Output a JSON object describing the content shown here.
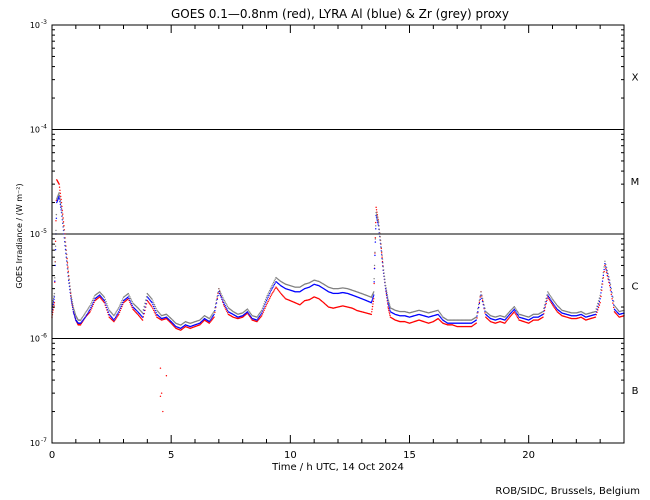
{
  "chart_data": {
    "type": "scatter",
    "title": "GOES 0.1—0.8nm (red), LYRA Al (blue) & Zr (grey) proxy",
    "xlabel": "Time / h UTC, 14 Oct 2024",
    "ylabel": "GOES Irradiance / (W m⁻²)",
    "footer": "ROB/SIDC, Brussels, Belgium",
    "xlim": [
      0,
      24
    ],
    "ylim": [
      1e-07,
      0.001
    ],
    "yscale": "log",
    "x_ticks": [
      0,
      5,
      10,
      15,
      20
    ],
    "y_ticks": [
      {
        "value": 1e-07,
        "mant": "10",
        "exp": "-7"
      },
      {
        "value": 1e-06,
        "mant": "10",
        "exp": "-6"
      },
      {
        "value": 1e-05,
        "mant": "10",
        "exp": "-5"
      },
      {
        "value": 0.0001,
        "mant": "10",
        "exp": "-4"
      },
      {
        "value": 0.001,
        "mant": "10",
        "exp": "-3"
      }
    ],
    "flare_class_lines": [
      1e-06,
      1e-05,
      0.0001
    ],
    "flare_classes": [
      {
        "label": "B",
        "value": 3.2e-07
      },
      {
        "label": "C",
        "value": 3.2e-06
      },
      {
        "label": "M",
        "value": 3.2e-05
      },
      {
        "label": "X",
        "value": 0.00032
      }
    ],
    "colors": {
      "goes": "#ff0000",
      "lyra_al": "#0000ff",
      "lyra_zr": "#808080"
    },
    "series": [
      {
        "name": "GOES",
        "color": "#ff0000",
        "x": [
          0.0,
          0.1,
          0.2,
          0.3,
          0.4,
          0.5,
          0.6,
          0.7,
          0.8,
          0.9,
          1.0,
          1.1,
          1.2,
          1.4,
          1.6,
          1.8,
          2.0,
          2.2,
          2.4,
          2.6,
          2.8,
          3.0,
          3.2,
          3.4,
          3.6,
          3.8,
          4.0,
          4.2,
          4.4,
          4.6,
          4.8,
          5.0,
          5.2,
          5.4,
          5.6,
          5.8,
          6.0,
          6.2,
          6.4,
          6.6,
          6.8,
          7.0,
          7.2,
          7.4,
          7.6,
          7.8,
          8.0,
          8.2,
          8.4,
          8.6,
          8.8,
          9.0,
          9.2,
          9.4,
          9.6,
          9.8,
          10.0,
          10.2,
          10.4,
          10.6,
          10.8,
          11.0,
          11.2,
          11.4,
          11.6,
          11.8,
          12.0,
          12.2,
          12.4,
          12.6,
          12.8,
          13.0,
          13.2,
          13.4,
          13.5,
          13.6,
          13.7,
          13.8,
          13.9,
          14.0,
          14.1,
          14.2,
          14.4,
          14.6,
          14.8,
          15.0,
          15.2,
          15.4,
          15.6,
          15.8,
          16.0,
          16.2,
          16.4,
          16.6,
          16.8,
          17.0,
          17.2,
          17.4,
          17.6,
          17.8,
          18.0,
          18.2,
          18.4,
          18.6,
          18.8,
          19.0,
          19.2,
          19.4,
          19.6,
          19.8,
          20.0,
          20.2,
          20.4,
          20.6,
          20.8,
          21.0,
          21.2,
          21.4,
          21.6,
          21.8,
          22.0,
          22.2,
          22.4,
          22.6,
          22.8,
          23.0,
          23.2,
          23.4,
          23.6,
          23.8,
          24.0
        ],
        "y": [
          1.6e-06,
          2.2e-06,
          3.3e-05,
          3e-05,
          2e-05,
          1.2e-05,
          7e-06,
          4e-06,
          2.5e-06,
          1.8e-06,
          1.5e-06,
          1.35e-06,
          1.35e-06,
          1.6e-06,
          1.8e-06,
          2.3e-06,
          2.5e-06,
          2.2e-06,
          1.6e-06,
          1.45e-06,
          1.7e-06,
          2.2e-06,
          2.4e-06,
          1.9e-06,
          1.7e-06,
          1.5e-06,
          2.3e-06,
          2e-06,
          1.6e-06,
          1.5e-06,
          1.55e-06,
          1.4e-06,
          1.25e-06,
          1.2e-06,
          1.3e-06,
          1.25e-06,
          1.3e-06,
          1.35e-06,
          1.5e-06,
          1.4e-06,
          1.6e-06,
          3e-06,
          2.1e-06,
          1.7e-06,
          1.6e-06,
          1.55e-06,
          1.6e-06,
          1.75e-06,
          1.5e-06,
          1.45e-06,
          1.65e-06,
          2.1e-06,
          2.6e-06,
          3.1e-06,
          2.7e-06,
          2.4e-06,
          2.3e-06,
          2.2e-06,
          2.1e-06,
          2.3e-06,
          2.35e-06,
          2.5e-06,
          2.4e-06,
          2.2e-06,
          2e-06,
          1.95e-06,
          2e-06,
          2.05e-06,
          2e-06,
          1.95e-06,
          1.85e-06,
          1.8e-06,
          1.75e-06,
          1.7e-06,
          2.4e-06,
          1.8e-05,
          1.3e-05,
          8e-06,
          4.5e-06,
          3e-06,
          2e-06,
          1.6e-06,
          1.5e-06,
          1.45e-06,
          1.45e-06,
          1.4e-06,
          1.45e-06,
          1.5e-06,
          1.45e-06,
          1.4e-06,
          1.45e-06,
          1.55e-06,
          1.4e-06,
          1.35e-06,
          1.35e-06,
          1.3e-06,
          1.3e-06,
          1.3e-06,
          1.3e-06,
          1.4e-06,
          2.8e-06,
          1.6e-06,
          1.45e-06,
          1.4e-06,
          1.45e-06,
          1.4e-06,
          1.6e-06,
          1.8e-06,
          1.5e-06,
          1.45e-06,
          1.4e-06,
          1.5e-06,
          1.5e-06,
          1.6e-06,
          2.5e-06,
          2.1e-06,
          1.8e-06,
          1.65e-06,
          1.6e-06,
          1.55e-06,
          1.55e-06,
          1.6e-06,
          1.5e-06,
          1.55e-06,
          1.6e-06,
          2.2e-06,
          5e-06,
          3.2e-06,
          1.8e-06,
          1.6e-06,
          1.65e-06
        ]
      },
      {
        "name": "LYRA Al",
        "color": "#0000ff",
        "x": [
          0.0,
          0.1,
          0.2,
          0.3,
          0.4,
          0.5,
          0.6,
          0.7,
          0.8,
          0.9,
          1.0,
          1.1,
          1.2,
          1.4,
          1.6,
          1.8,
          2.0,
          2.2,
          2.4,
          2.6,
          2.8,
          3.0,
          3.2,
          3.4,
          3.6,
          3.8,
          4.0,
          4.2,
          4.4,
          4.6,
          4.8,
          5.0,
          5.2,
          5.4,
          5.6,
          5.8,
          6.0,
          6.2,
          6.4,
          6.6,
          6.8,
          7.0,
          7.2,
          7.4,
          7.6,
          7.8,
          8.0,
          8.2,
          8.4,
          8.6,
          8.8,
          9.0,
          9.2,
          9.4,
          9.6,
          9.8,
          10.0,
          10.2,
          10.4,
          10.6,
          10.8,
          11.0,
          11.2,
          11.4,
          11.6,
          11.8,
          12.0,
          12.2,
          12.4,
          12.6,
          12.8,
          13.0,
          13.2,
          13.4,
          13.5,
          13.6,
          13.7,
          13.8,
          13.9,
          14.0,
          14.1,
          14.2,
          14.4,
          14.6,
          14.8,
          15.0,
          15.2,
          15.4,
          15.6,
          15.8,
          16.0,
          16.2,
          16.4,
          16.6,
          16.8,
          17.0,
          17.2,
          17.4,
          17.6,
          17.8,
          18.0,
          18.2,
          18.4,
          18.6,
          18.8,
          19.0,
          19.2,
          19.4,
          19.6,
          19.8,
          20.0,
          20.2,
          20.4,
          20.6,
          20.8,
          21.0,
          21.2,
          21.4,
          21.6,
          21.8,
          22.0,
          22.2,
          22.4,
          22.6,
          22.8,
          23.0,
          23.2,
          23.4,
          23.6,
          23.8,
          24.0
        ],
        "y": [
          1.8e-06,
          2.5e-06,
          2e-05,
          2.3e-05,
          1.6e-05,
          1e-05,
          6e-06,
          3.6e-06,
          2.4e-06,
          1.8e-06,
          1.5e-06,
          1.4e-06,
          1.4e-06,
          1.6e-06,
          1.9e-06,
          2.4e-06,
          2.6e-06,
          2.3e-06,
          1.7e-06,
          1.5e-06,
          1.8e-06,
          2.3e-06,
          2.5e-06,
          2e-06,
          1.8e-06,
          1.6e-06,
          2.5e-06,
          2.2e-06,
          1.7e-06,
          1.55e-06,
          1.6e-06,
          1.45e-06,
          1.3e-06,
          1.25e-06,
          1.35e-06,
          1.3e-06,
          1.35e-06,
          1.4e-06,
          1.55e-06,
          1.45e-06,
          1.7e-06,
          2.8e-06,
          2.2e-06,
          1.8e-06,
          1.7e-06,
          1.6e-06,
          1.65e-06,
          1.8e-06,
          1.55e-06,
          1.5e-06,
          1.75e-06,
          2.3e-06,
          2.9e-06,
          3.5e-06,
          3.2e-06,
          3e-06,
          2.9e-06,
          2.8e-06,
          2.8e-06,
          3e-06,
          3.1e-06,
          3.3e-06,
          3.2e-06,
          3e-06,
          2.8e-06,
          2.7e-06,
          2.7e-06,
          2.75e-06,
          2.7e-06,
          2.6e-06,
          2.5e-06,
          2.4e-06,
          2.3e-06,
          2.2e-06,
          2.6e-06,
          1.5e-05,
          1.2e-05,
          7.5e-06,
          4.5e-06,
          3e-06,
          2.2e-06,
          1.8e-06,
          1.7e-06,
          1.65e-06,
          1.65e-06,
          1.6e-06,
          1.65e-06,
          1.7e-06,
          1.65e-06,
          1.6e-06,
          1.65e-06,
          1.7e-06,
          1.5e-06,
          1.4e-06,
          1.4e-06,
          1.4e-06,
          1.4e-06,
          1.4e-06,
          1.4e-06,
          1.5e-06,
          2.6e-06,
          1.7e-06,
          1.55e-06,
          1.5e-06,
          1.55e-06,
          1.5e-06,
          1.7e-06,
          1.9e-06,
          1.6e-06,
          1.55e-06,
          1.5e-06,
          1.6e-06,
          1.6e-06,
          1.7e-06,
          2.6e-06,
          2.2e-06,
          1.9e-06,
          1.75e-06,
          1.7e-06,
          1.65e-06,
          1.65e-06,
          1.7e-06,
          1.6e-06,
          1.65e-06,
          1.7e-06,
          2.4e-06,
          5.2e-06,
          3.4e-06,
          1.9e-06,
          1.7e-06,
          1.75e-06
        ]
      },
      {
        "name": "LYRA Zr",
        "color": "#808080",
        "x": [
          0.0,
          0.1,
          0.2,
          0.3,
          0.4,
          0.5,
          0.6,
          0.7,
          0.8,
          0.9,
          1.0,
          1.1,
          1.2,
          1.4,
          1.6,
          1.8,
          2.0,
          2.2,
          2.4,
          2.6,
          2.8,
          3.0,
          3.2,
          3.4,
          3.6,
          3.8,
          4.0,
          4.2,
          4.4,
          4.6,
          4.8,
          5.0,
          5.2,
          5.4,
          5.6,
          5.8,
          6.0,
          6.2,
          6.4,
          6.6,
          6.8,
          7.0,
          7.2,
          7.4,
          7.6,
          7.8,
          8.0,
          8.2,
          8.4,
          8.6,
          8.8,
          9.0,
          9.2,
          9.4,
          9.6,
          9.8,
          10.0,
          10.2,
          10.4,
          10.6,
          10.8,
          11.0,
          11.2,
          11.4,
          11.6,
          11.8,
          12.0,
          12.2,
          12.4,
          12.6,
          12.8,
          13.0,
          13.2,
          13.4,
          13.5,
          13.6,
          13.7,
          13.8,
          13.9,
          14.0,
          14.1,
          14.2,
          14.4,
          14.6,
          14.8,
          15.0,
          15.2,
          15.4,
          15.6,
          15.8,
          16.0,
          16.2,
          16.4,
          16.6,
          16.8,
          17.0,
          17.2,
          17.4,
          17.6,
          17.8,
          18.0,
          18.2,
          18.4,
          18.6,
          18.8,
          19.0,
          19.2,
          19.4,
          19.6,
          19.8,
          20.0,
          20.2,
          20.4,
          20.6,
          20.8,
          21.0,
          21.2,
          21.4,
          21.6,
          21.8,
          22.0,
          22.2,
          22.4,
          22.6,
          22.8,
          23.0,
          23.2,
          23.4,
          23.6,
          23.8,
          24.0
        ],
        "y": [
          1.9e-06,
          2.6e-06,
          2.1e-05,
          2.4e-05,
          1.7e-05,
          1.05e-05,
          6.2e-06,
          3.8e-06,
          2.5e-06,
          1.9e-06,
          1.6e-06,
          1.45e-06,
          1.45e-06,
          1.7e-06,
          2e-06,
          2.5e-06,
          2.7e-06,
          2.4e-06,
          1.8e-06,
          1.6e-06,
          1.9e-06,
          2.4e-06,
          2.6e-06,
          2.1e-06,
          1.9e-06,
          1.7e-06,
          2.6e-06,
          2.3e-06,
          1.8e-06,
          1.6e-06,
          1.65e-06,
          1.5e-06,
          1.35e-06,
          1.3e-06,
          1.4e-06,
          1.35e-06,
          1.4e-06,
          1.45e-06,
          1.6e-06,
          1.5e-06,
          1.75e-06,
          2.9e-06,
          2.3e-06,
          1.9e-06,
          1.75e-06,
          1.65e-06,
          1.7e-06,
          1.85e-06,
          1.6e-06,
          1.55e-06,
          1.8e-06,
          2.4e-06,
          3e-06,
          3.7e-06,
          3.4e-06,
          3.2e-06,
          3.1e-06,
          3e-06,
          3e-06,
          3.2e-06,
          3.3e-06,
          3.5e-06,
          3.4e-06,
          3.2e-06,
          3e-06,
          2.9e-06,
          2.9e-06,
          2.95e-06,
          2.9e-06,
          2.8e-06,
          2.7e-06,
          2.6e-06,
          2.5e-06,
          2.4e-06,
          2.7e-06,
          1.55e-05,
          1.25e-05,
          7.8e-06,
          4.7e-06,
          3.1e-06,
          2.3e-06,
          1.9e-06,
          1.8e-06,
          1.75e-06,
          1.75e-06,
          1.7e-06,
          1.75e-06,
          1.8e-06,
          1.75e-06,
          1.7e-06,
          1.75e-06,
          1.8e-06,
          1.55e-06,
          1.45e-06,
          1.45e-06,
          1.45e-06,
          1.45e-06,
          1.45e-06,
          1.45e-06,
          1.55e-06,
          2.7e-06,
          1.75e-06,
          1.6e-06,
          1.55e-06,
          1.6e-06,
          1.55e-06,
          1.75e-06,
          1.95e-06,
          1.65e-06,
          1.6e-06,
          1.55e-06,
          1.65e-06,
          1.65e-06,
          1.75e-06,
          2.7e-06,
          2.3e-06,
          2e-06,
          1.8e-06,
          1.75e-06,
          1.7e-06,
          1.7e-06,
          1.75e-06,
          1.65e-06,
          1.7e-06,
          1.75e-06,
          2.5e-06,
          5.3e-06,
          3.5e-06,
          2e-06,
          1.75e-06,
          1.8e-06
        ]
      },
      {
        "name": "GOES outliers",
        "color": "#ff0000",
        "x": [
          4.55,
          4.6,
          4.8,
          4.65,
          4.55
        ],
        "y": [
          5.2e-07,
          3e-07,
          4.4e-07,
          2e-07,
          2.8e-07
        ]
      }
    ]
  }
}
